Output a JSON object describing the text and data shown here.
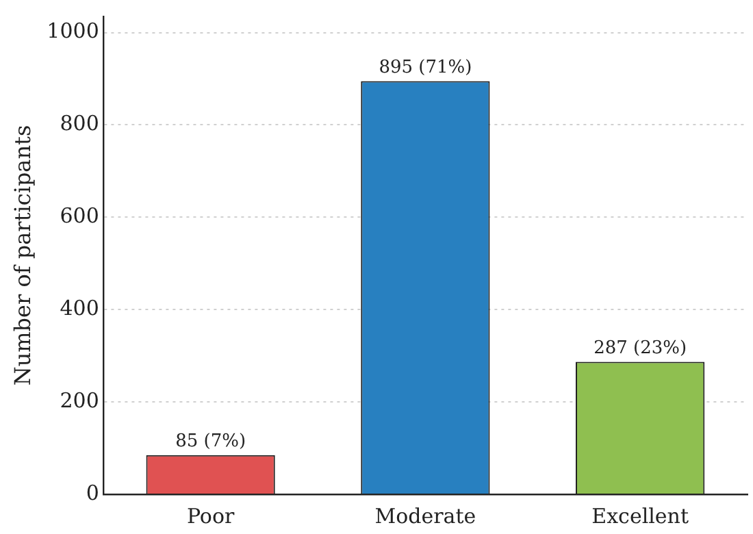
{
  "chart_data": {
    "type": "bar",
    "ylabel": "Number of participants",
    "categories": [
      "Poor",
      "Moderate",
      "Excellent"
    ],
    "values": [
      85,
      895,
      287
    ],
    "colors": [
      "#e05252",
      "#2880c0",
      "#8fbf50"
    ],
    "value_labels": [
      "85 (7%)",
      "895 (71%)",
      "287 (23%)"
    ],
    "ylim": [
      0,
      1035
    ],
    "yticks": [
      0,
      200,
      400,
      600,
      800,
      1000
    ],
    "grid": "y",
    "legend": false
  }
}
